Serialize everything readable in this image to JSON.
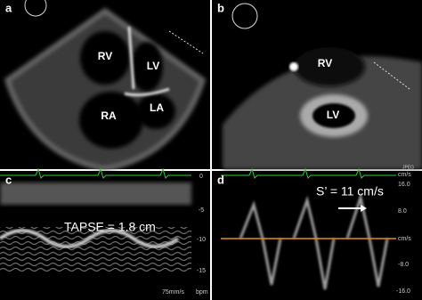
{
  "panels": [
    {
      "label": "a",
      "structures": [
        "RV",
        "LV",
        "RA",
        "LA"
      ]
    },
    {
      "label": "b",
      "structures": [
        "RV",
        "LV"
      ]
    },
    {
      "label": "c",
      "annotation": "TAPSE = 1.8 cm",
      "scale": [
        "0",
        "-5",
        "-10",
        "-15"
      ],
      "speed": "75mm/s",
      "rate": "bpm"
    },
    {
      "label": "d",
      "annotation": "S’ = 11 cm/s",
      "scale": [
        "cm/s",
        "16.0",
        "8.0",
        "cm/s",
        "-8.0",
        "-16.0"
      ],
      "tag": "JPEG"
    }
  ]
}
